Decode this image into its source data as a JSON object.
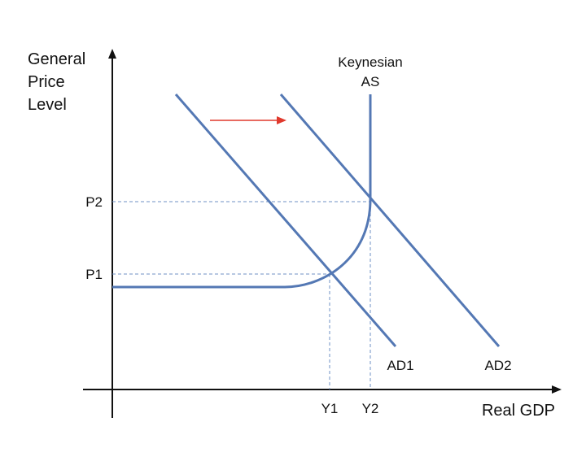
{
  "diagram": {
    "y_axis_title_lines": [
      "General",
      "Price",
      "Level"
    ],
    "x_axis_title": "Real GDP",
    "as_label_lines": [
      "Keynesian",
      "AS"
    ],
    "price_levels": [
      "P2",
      "P1"
    ],
    "output_levels": [
      "Y1",
      "Y2"
    ],
    "demand_curves": [
      "AD1",
      "AD2"
    ],
    "colors": {
      "curve": "#5478b4",
      "guide": "#6f90c4",
      "axis": "#111111",
      "shift_arrow": "#e0392d"
    }
  }
}
